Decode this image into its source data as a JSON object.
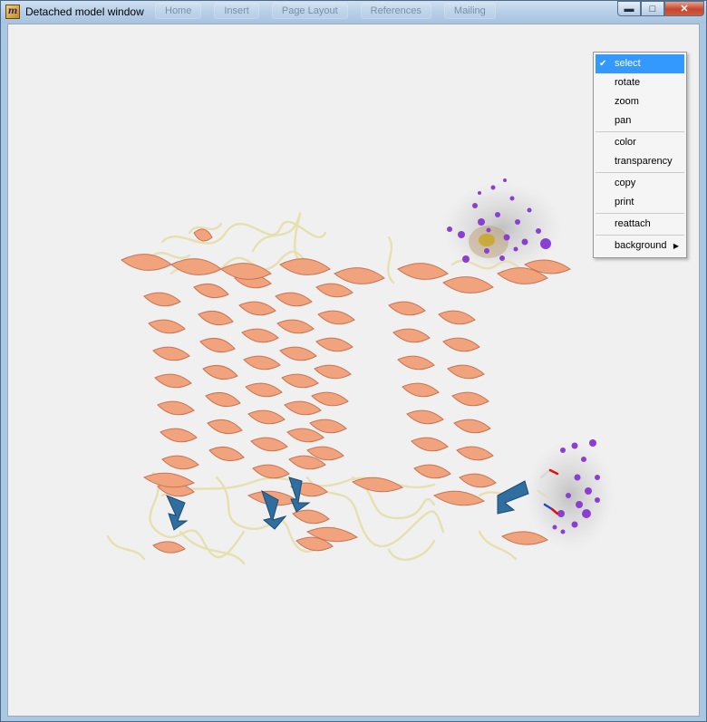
{
  "window": {
    "title": "Detached model window",
    "icon": "mathematica-icon",
    "controls": {
      "minimize": "minimize-icon",
      "maximize": "maximize-icon",
      "close": "close-icon"
    }
  },
  "background_ribbon": [
    "Home",
    "Insert",
    "Page Layout",
    "References",
    "Mailing"
  ],
  "viewer": {
    "content": "3d-protein-ribbon-structure",
    "colors": {
      "helix": "#f0a37d",
      "coil": "#e9e4b7",
      "sheet": "#2f6e9f",
      "ligand": "#8a3fd0",
      "background": "#f0f0f0"
    }
  },
  "context_menu": {
    "groups": [
      [
        {
          "label": "select",
          "checked": true
        },
        {
          "label": "rotate"
        },
        {
          "label": "zoom"
        },
        {
          "label": "pan"
        }
      ],
      [
        {
          "label": "color"
        },
        {
          "label": "transparency"
        }
      ],
      [
        {
          "label": "copy"
        },
        {
          "label": "print"
        }
      ],
      [
        {
          "label": "reattach"
        }
      ],
      [
        {
          "label": "background",
          "submenu": true
        }
      ]
    ]
  }
}
